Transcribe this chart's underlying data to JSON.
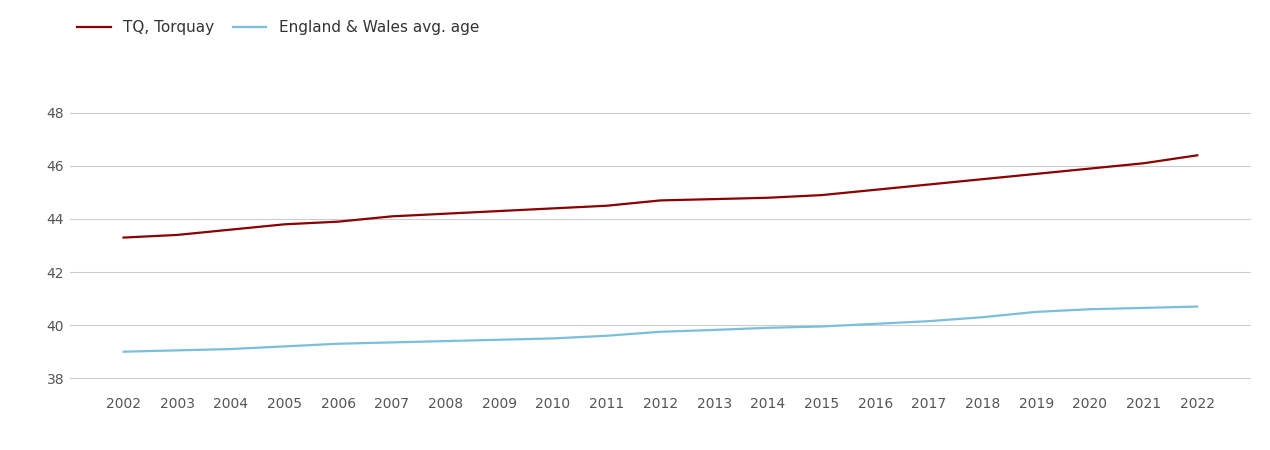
{
  "years": [
    2002,
    2003,
    2004,
    2005,
    2006,
    2007,
    2008,
    2009,
    2010,
    2011,
    2012,
    2013,
    2014,
    2015,
    2016,
    2017,
    2018,
    2019,
    2020,
    2021,
    2022
  ],
  "torquay": [
    43.3,
    43.4,
    43.6,
    43.8,
    43.9,
    44.1,
    44.2,
    44.3,
    44.4,
    44.5,
    44.7,
    44.75,
    44.8,
    44.9,
    45.1,
    45.3,
    45.5,
    45.7,
    45.9,
    46.1,
    46.4
  ],
  "england_wales": [
    39.0,
    39.05,
    39.1,
    39.2,
    39.3,
    39.35,
    39.4,
    39.45,
    39.5,
    39.6,
    39.75,
    39.82,
    39.9,
    39.95,
    40.05,
    40.15,
    40.3,
    40.5,
    40.6,
    40.65,
    40.7
  ],
  "torquay_color": "#8B0000",
  "england_wales_color": "#7BBFDB",
  "torquay_label": "TQ, Torquay",
  "england_wales_label": "England & Wales avg. age",
  "ylim_min": 37.5,
  "ylim_max": 49.2,
  "yticks": [
    38,
    40,
    42,
    44,
    46,
    48
  ],
  "grid_color": "#cccccc",
  "background_color": "#ffffff",
  "line_width": 1.6,
  "legend_fontsize": 11,
  "tick_fontsize": 10,
  "tick_color": "#555555"
}
